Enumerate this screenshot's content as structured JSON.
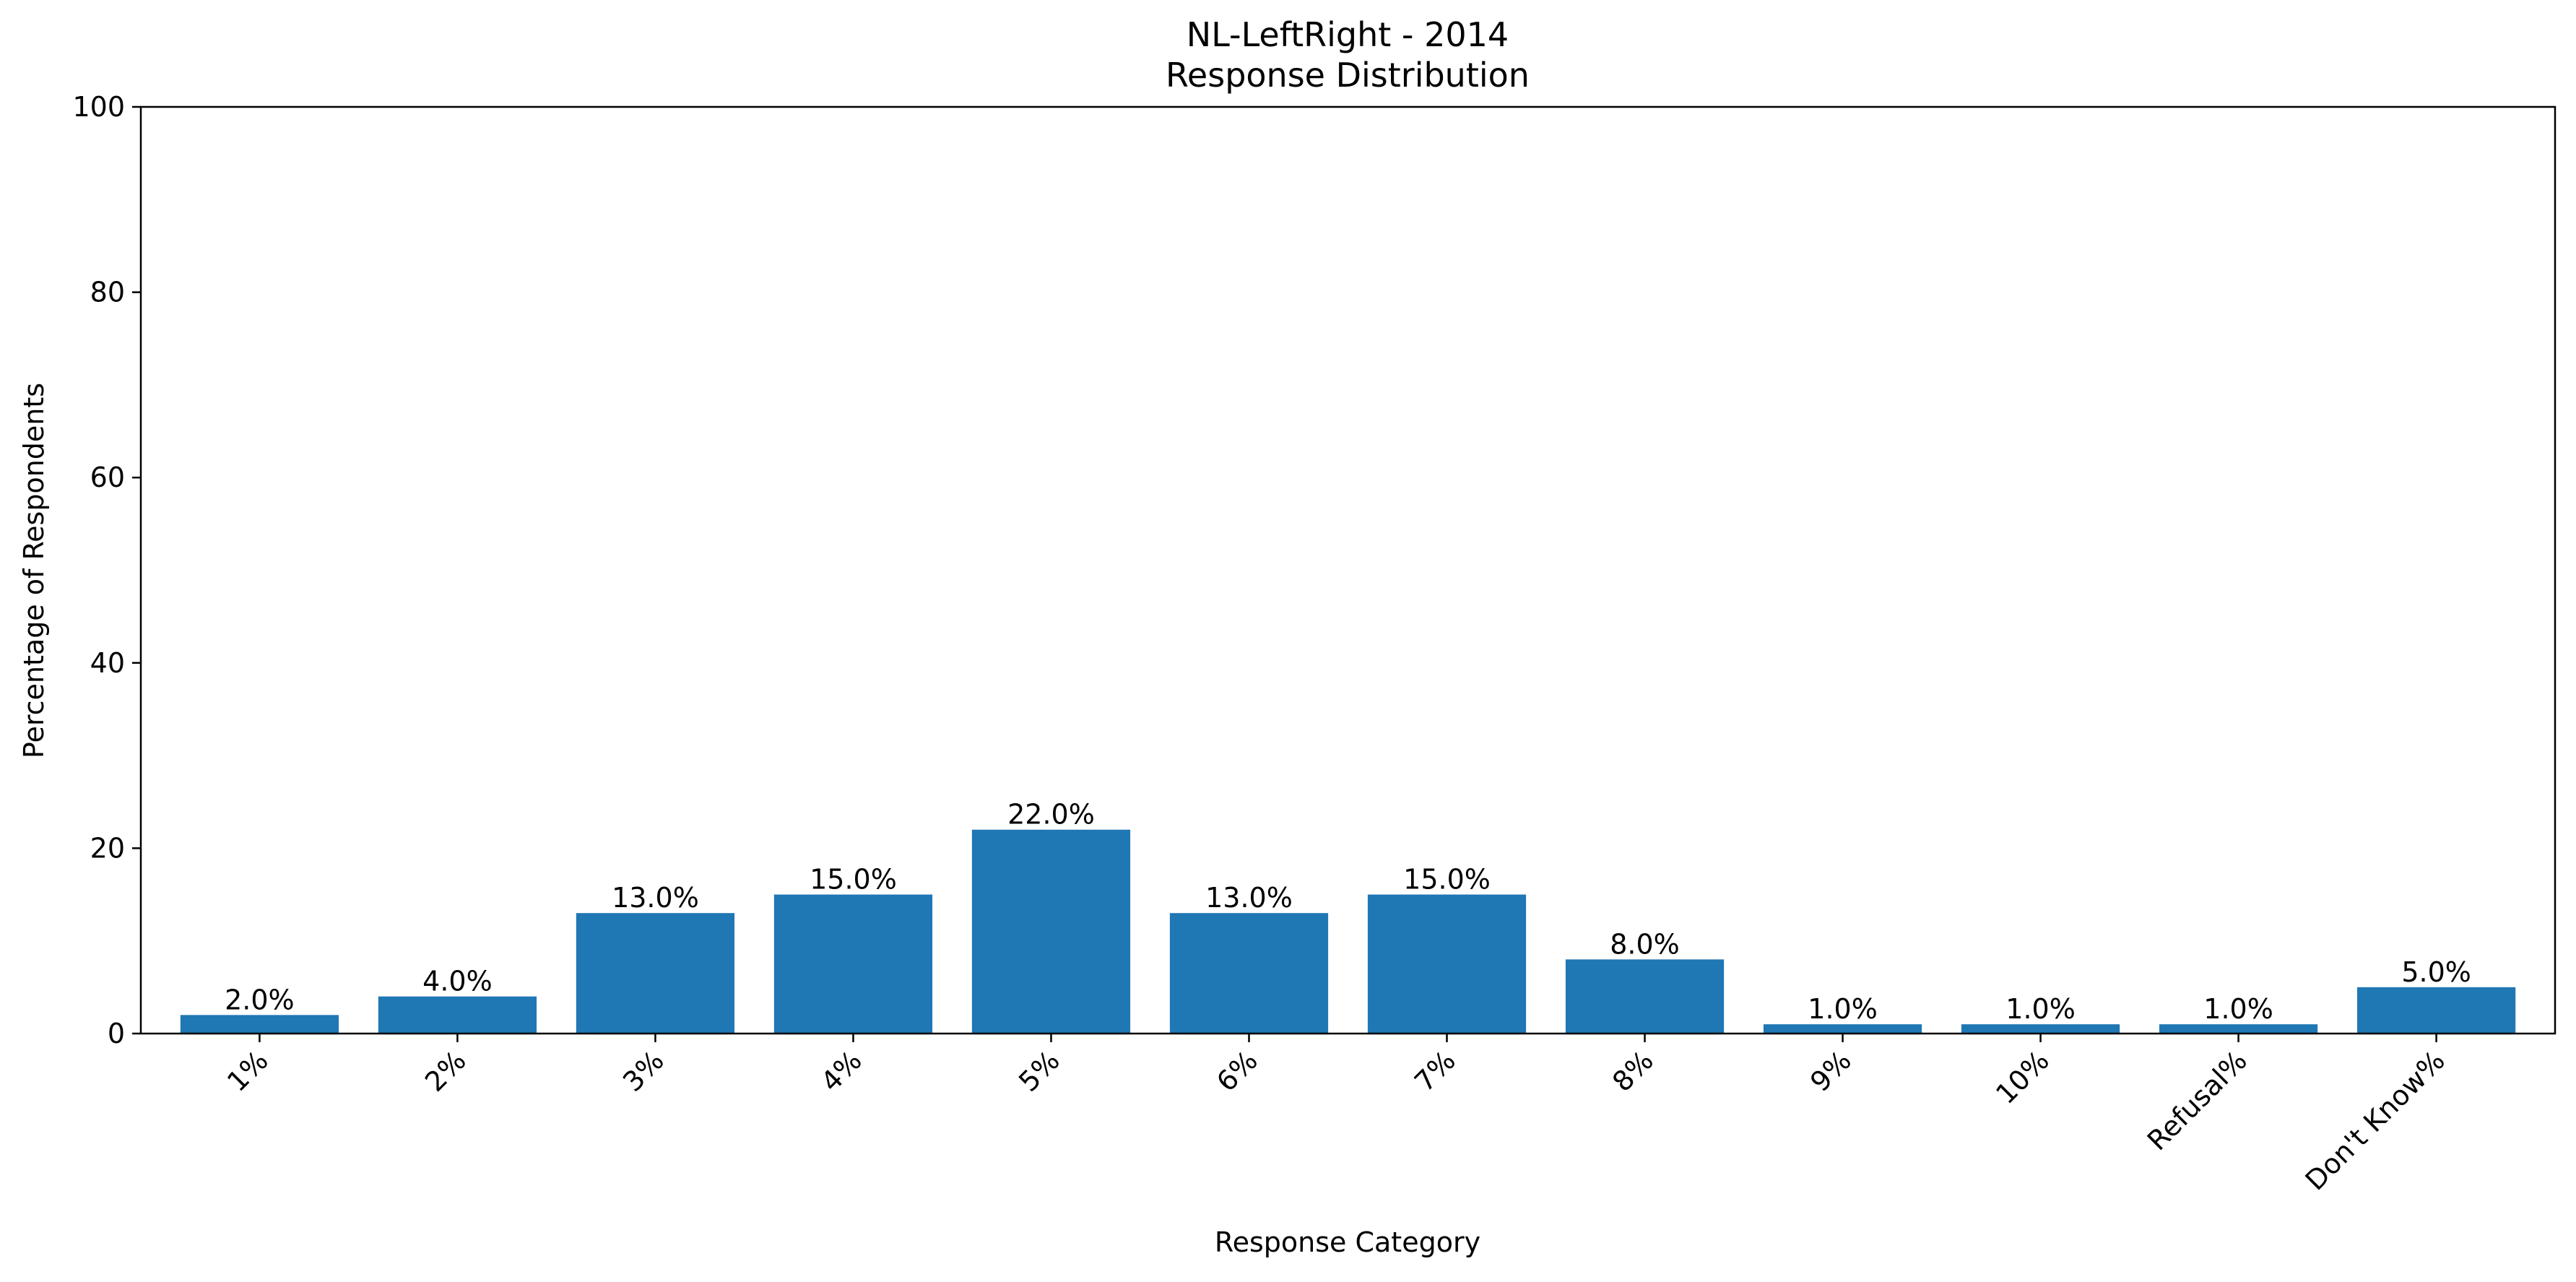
{
  "chart_data": {
    "type": "bar",
    "title": "NL-LeftRight - 2014",
    "subtitle": "Response Distribution",
    "xlabel": "Response Category",
    "ylabel": "Percentage of Respondents",
    "categories": [
      "1%",
      "2%",
      "3%",
      "4%",
      "5%",
      "6%",
      "7%",
      "8%",
      "9%",
      "10%",
      "Refusal%",
      "Don't Know%"
    ],
    "values": [
      2.0,
      4.0,
      13.0,
      15.0,
      22.0,
      13.0,
      15.0,
      8.0,
      1.0,
      1.0,
      1.0,
      5.0
    ],
    "data_labels": [
      "2.0%",
      "4.0%",
      "13.0%",
      "15.0%",
      "22.0%",
      "13.0%",
      "15.0%",
      "8.0%",
      "1.0%",
      "1.0%",
      "1.0%",
      "5.0%"
    ],
    "ylim": [
      0,
      100
    ],
    "yticks": [
      0,
      20,
      40,
      60,
      80,
      100
    ],
    "ytick_labels": [
      "0",
      "20",
      "40",
      "60",
      "80",
      "100"
    ],
    "grid": false,
    "legend": "none",
    "bar_color": "#1f77b4"
  }
}
